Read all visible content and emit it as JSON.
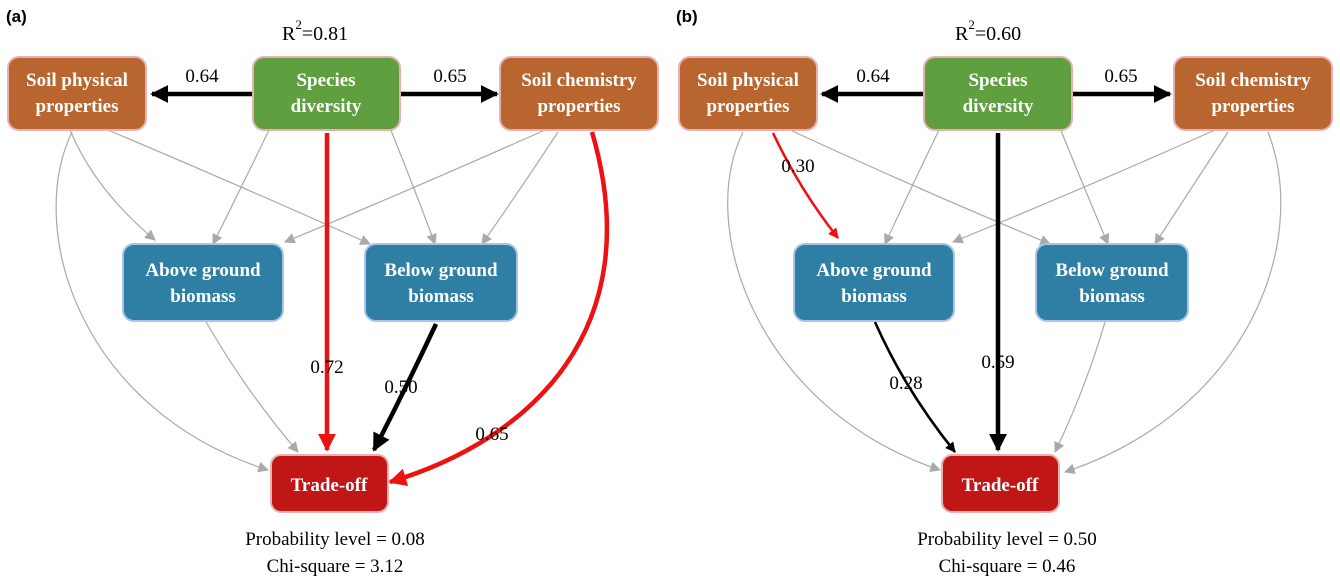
{
  "panels": [
    {
      "label": "(a)",
      "r2_base": "R",
      "r2_sup": "2",
      "r2_value": "=0.81",
      "nodes": {
        "soil_physical": [
          "Soil physical",
          "properties"
        ],
        "species": [
          "Species",
          "diversity"
        ],
        "soil_chemistry": [
          "Soil chemistry",
          "properties"
        ],
        "above": [
          "Above ground",
          "biomass"
        ],
        "below": [
          "Below ground",
          "biomass"
        ],
        "tradeoff": [
          "Trade-off"
        ]
      },
      "coefficients": {
        "species_to_physical": "0.64",
        "species_to_chemistry": "0.65",
        "species_to_tradeoff": "0.72",
        "below_to_tradeoff": "0.50",
        "chemistry_to_tradeoff": "0.65"
      },
      "probability": "Probability level = 0.08",
      "chi_square": "Chi-square = 3.12"
    },
    {
      "label": "(b)",
      "r2_base": "R",
      "r2_sup": "2",
      "r2_value": "=0.60",
      "nodes": {
        "soil_physical": [
          "Soil physical",
          "properties"
        ],
        "species": [
          "Species",
          "diversity"
        ],
        "soil_chemistry": [
          "Soil chemistry",
          "properties"
        ],
        "above": [
          "Above ground",
          "biomass"
        ],
        "below": [
          "Below ground",
          "biomass"
        ],
        "tradeoff": [
          "Trade-off"
        ]
      },
      "coefficients": {
        "species_to_physical": "0.64",
        "species_to_chemistry": "0.65",
        "physical_to_above": "0.30",
        "above_to_tradeoff": "0.28",
        "species_to_tradeoff": "0.59"
      },
      "probability": "Probability level = 0.50",
      "chi_square": "Chi-square = 0.46"
    }
  ],
  "colors": {
    "soil": "#b8652f",
    "species": "#5f9f3f",
    "biomass": "#2e7fa3",
    "tradeoff": "#c01616",
    "black_path": "#000000",
    "red_path": "#ee1111",
    "gray_path": "#a9a9a9"
  }
}
